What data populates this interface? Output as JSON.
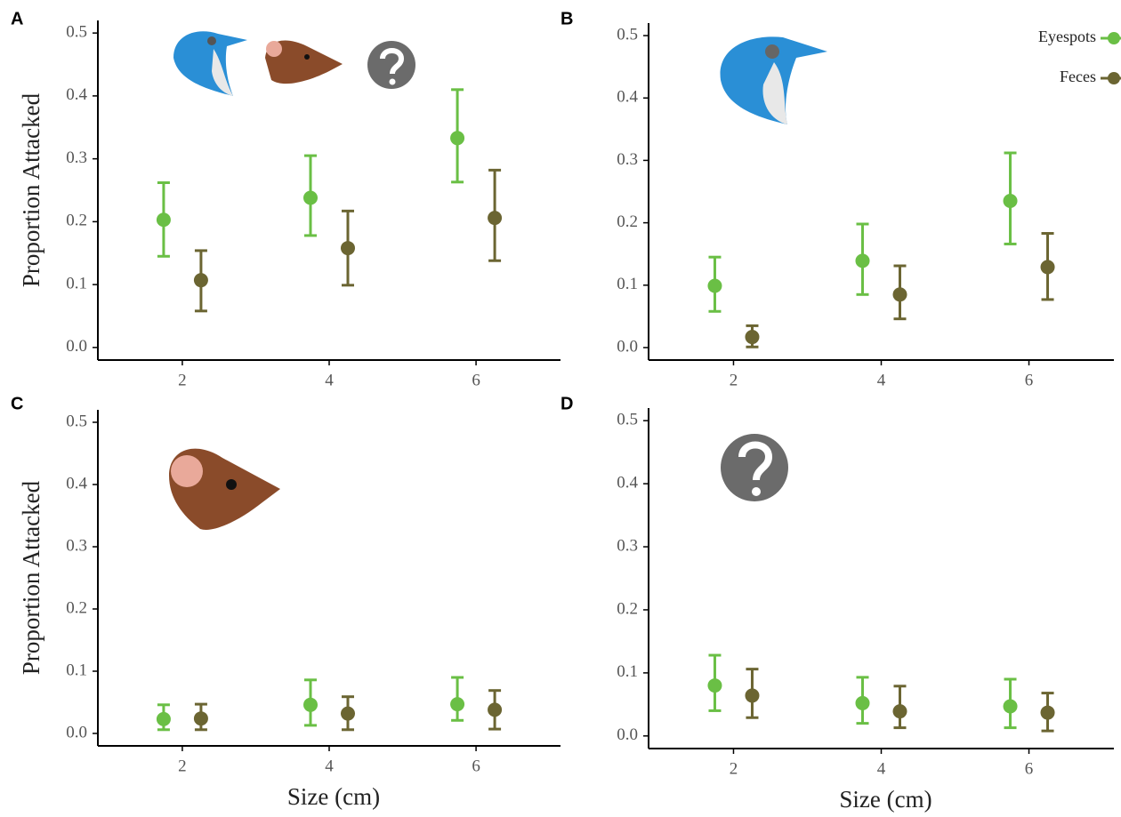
{
  "chart_data": [
    {
      "type": "scatter",
      "panel_label": "A",
      "ylabel": "Proportion Attacked",
      "x": [
        2,
        4,
        6
      ],
      "xlim": [
        0.85,
        7.15
      ],
      "xticks": [
        2,
        4,
        6
      ],
      "ylim": [
        -0.02,
        0.52
      ],
      "yticks": [
        {
          "value": 0,
          "label": "0.0"
        },
        0.1,
        0.2,
        0.3,
        0.4,
        0.5
      ],
      "series": [
        {
          "color": "#6abf45",
          "values": [
            0.203,
            0.238,
            0.333
          ],
          "lower": [
            0.145,
            0.178,
            0.263
          ],
          "upper": [
            0.262,
            0.305,
            0.41
          ]
        },
        {
          "color": "#6b6532",
          "values": [
            0.107,
            0.158,
            0.206
          ],
          "lower": [
            0.058,
            0.099,
            0.138
          ],
          "upper": [
            0.154,
            0.217,
            0.282
          ]
        }
      ]
    },
    {
      "type": "scatter",
      "panel_label": "B",
      "legend": "top-right",
      "x": [
        2,
        4,
        6
      ],
      "xlim": [
        0.85,
        7.15
      ],
      "xticks": [
        2,
        4,
        6
      ],
      "ylim": [
        -0.02,
        0.52
      ],
      "yticks": [
        {
          "value": 0,
          "label": "0.0"
        },
        0.1,
        0.2,
        0.3,
        0.4,
        0.5
      ],
      "series": [
        {
          "name": "Eyespots",
          "color": "#6abf45",
          "values": [
            0.099,
            0.139,
            0.235
          ],
          "lower": [
            0.058,
            0.085,
            0.166
          ],
          "upper": [
            0.145,
            0.198,
            0.312
          ]
        },
        {
          "name": "Feces",
          "color": "#6b6532",
          "values": [
            0.017,
            0.085,
            0.129
          ],
          "lower": [
            0.001,
            0.046,
            0.077
          ],
          "upper": [
            0.035,
            0.131,
            0.183
          ]
        }
      ]
    },
    {
      "type": "scatter",
      "panel_label": "C",
      "ylabel": "Proportion Attacked",
      "xlabel": "Size (cm)",
      "x": [
        2,
        4,
        6
      ],
      "xlim": [
        0.85,
        7.15
      ],
      "xticks": [
        2,
        4,
        6
      ],
      "ylim": [
        -0.02,
        0.52
      ],
      "yticks": [
        {
          "value": 0,
          "label": "0.0"
        },
        0.1,
        0.2,
        0.3,
        0.4,
        0.5
      ],
      "series": [
        {
          "color": "#6abf45",
          "values": [
            0.023,
            0.046,
            0.047
          ],
          "lower": [
            0.006,
            0.013,
            0.021
          ],
          "upper": [
            0.046,
            0.086,
            0.09
          ]
        },
        {
          "color": "#6b6532",
          "values": [
            0.024,
            0.032,
            0.038
          ],
          "lower": [
            0.006,
            0.006,
            0.007
          ],
          "upper": [
            0.047,
            0.059,
            0.069
          ]
        }
      ]
    },
    {
      "type": "scatter",
      "panel_label": "D",
      "xlabel": "Size (cm)",
      "x": [
        2,
        4,
        6
      ],
      "xlim": [
        0.85,
        7.15
      ],
      "xticks": [
        2,
        4,
        6
      ],
      "ylim": [
        -0.02,
        0.52
      ],
      "yticks": [
        {
          "value": 0,
          "label": "0.0"
        },
        0.1,
        0.2,
        0.3,
        0.4,
        0.5
      ],
      "series": [
        {
          "color": "#6abf45",
          "values": [
            0.08,
            0.052,
            0.047
          ],
          "lower": [
            0.04,
            0.02,
            0.013
          ],
          "upper": [
            0.128,
            0.093,
            0.09
          ]
        },
        {
          "color": "#6b6532",
          "values": [
            0.064,
            0.039,
            0.037
          ],
          "lower": [
            0.029,
            0.013,
            0.008
          ],
          "upper": [
            0.106,
            0.079,
            0.068
          ]
        }
      ]
    }
  ]
}
